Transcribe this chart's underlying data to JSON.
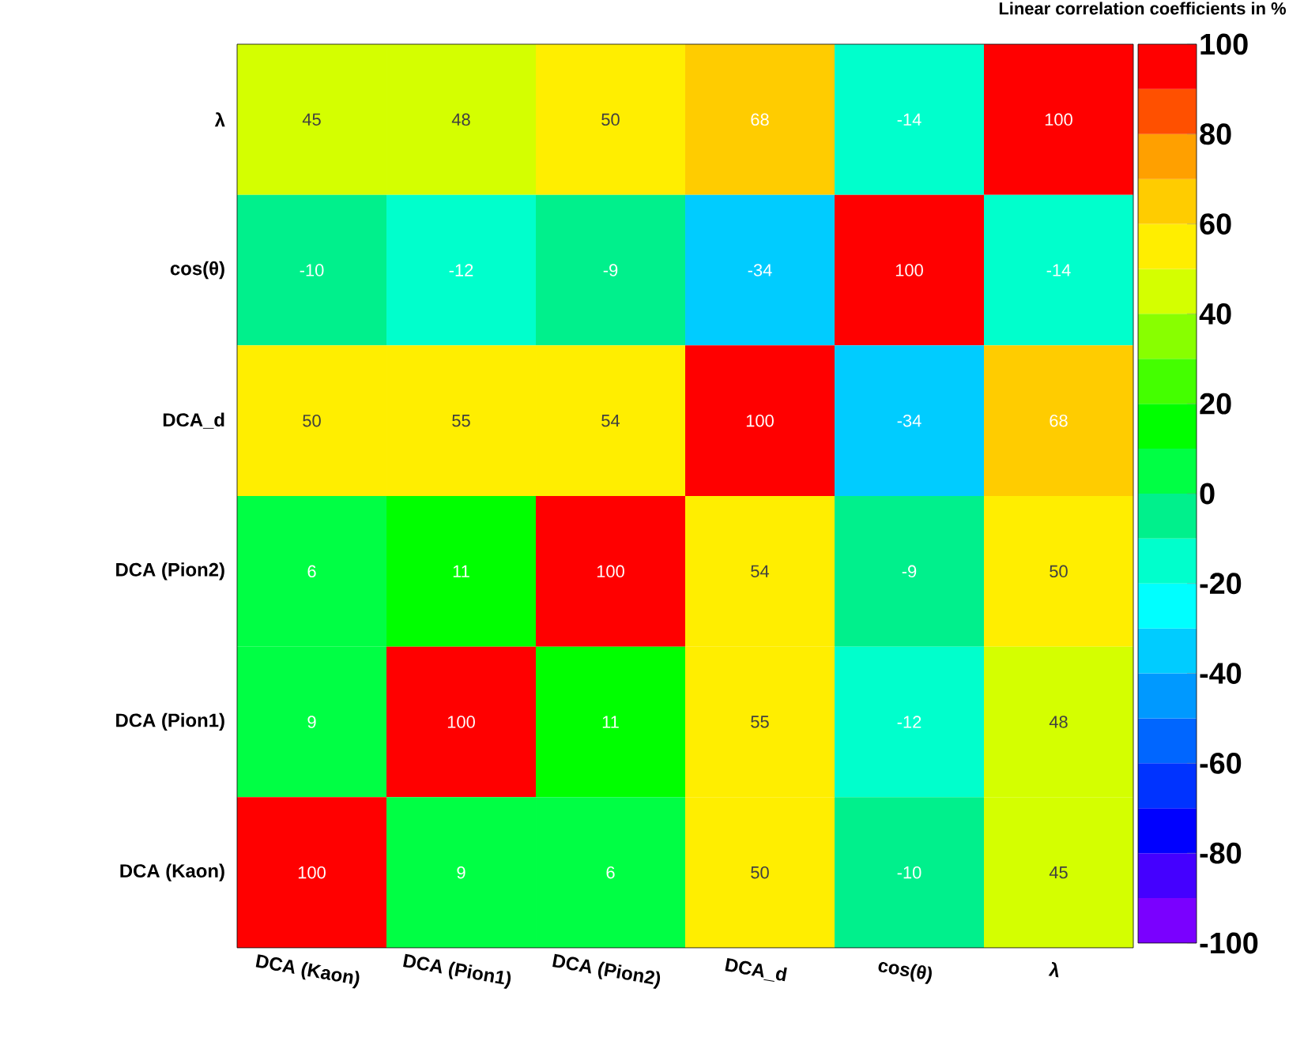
{
  "chart_data": {
    "type": "heatmap",
    "title": "Linear correlation coefficients in %",
    "categories": [
      "DCA (Kaon)",
      "DCA (Pion1)",
      "DCA (Pion2)",
      "DCA_d",
      "cos(θ)",
      "λ"
    ],
    "y_categories": [
      "λ",
      "cos(θ)",
      "DCA_d",
      "DCA (Pion2)",
      "DCA (Pion1)",
      "DCA (Kaon)"
    ],
    "cells": [
      [
        45,
        48,
        50,
        68,
        -14,
        100
      ],
      [
        -10,
        -12,
        -9,
        -34,
        100,
        -14
      ],
      [
        50,
        55,
        54,
        100,
        -34,
        68
      ],
      [
        6,
        11,
        100,
        54,
        -9,
        50
      ],
      [
        9,
        100,
        11,
        55,
        -12,
        48
      ],
      [
        100,
        9,
        6,
        50,
        -10,
        45
      ]
    ],
    "clim": [
      -100,
      100
    ],
    "cticks": [
      -100,
      -80,
      -60,
      -40,
      -20,
      0,
      20,
      40,
      60,
      80,
      100
    ],
    "data_labels": true
  }
}
